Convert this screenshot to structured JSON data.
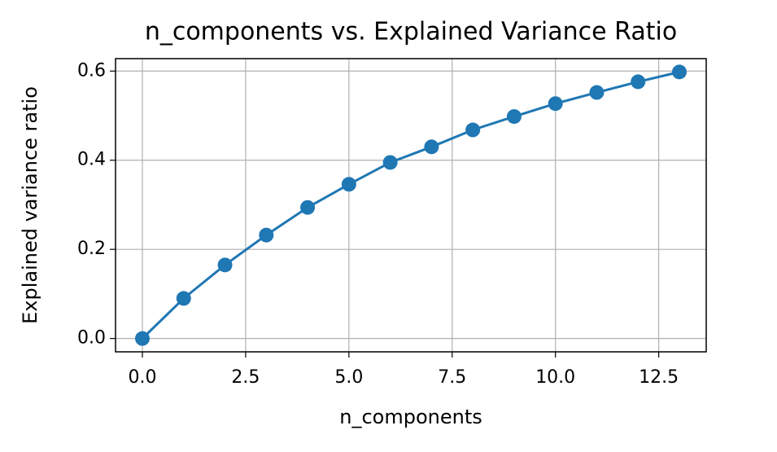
{
  "chart_data": {
    "type": "line",
    "title": "n_components vs. Explained Variance Ratio",
    "x_label": "n_components",
    "y_label": "Explained variance ratio",
    "x": [
      0,
      1,
      2,
      3,
      4,
      5,
      6,
      7,
      8,
      9,
      10,
      11,
      12,
      13
    ],
    "series": [
      {
        "color": "#1f77b4",
        "values": [
          0,
          0.09,
          0.165,
          0.232,
          0.294,
          0.346,
          0.395,
          0.43,
          0.468,
          0.498,
          0.527,
          0.552,
          0.576,
          0.598
        ]
      }
    ],
    "xlim": [
      -0.65,
      13.65
    ],
    "xticks": [
      {
        "value": 0,
        "label": "0.0"
      },
      2.5,
      {
        "value": 5,
        "label": "5.0"
      },
      7.5,
      {
        "value": 10,
        "label": "10.0"
      },
      12.5
    ],
    "ylim": [
      -0.0299,
      0.6279
    ],
    "yticks": [
      {
        "value": 0,
        "label": "0.0"
      },
      0.2,
      0.4,
      0.6
    ],
    "grid": true
  }
}
